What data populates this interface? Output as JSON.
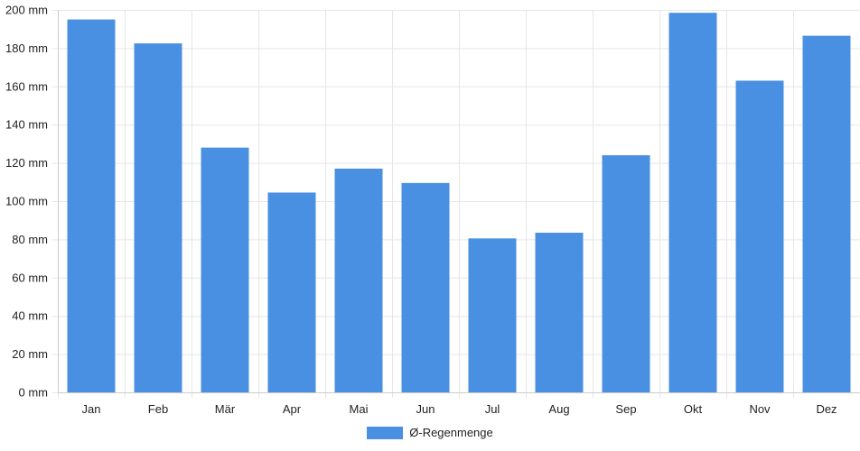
{
  "chart_data": {
    "type": "bar",
    "categories": [
      "Jan",
      "Feb",
      "Mär",
      "Apr",
      "Mai",
      "Jun",
      "Jul",
      "Aug",
      "Sep",
      "Okt",
      "Nov",
      "Dez"
    ],
    "series": [
      {
        "name": "Ø-Regenmenge",
        "values": [
          195,
          182.5,
          128,
          104.5,
          117,
          109.5,
          80.5,
          83.5,
          124,
          198.5,
          163,
          186.5
        ]
      }
    ],
    "y_ticks": [
      0,
      20,
      40,
      60,
      80,
      100,
      120,
      140,
      160,
      180,
      200
    ],
    "y_unit": "mm",
    "ylim": [
      0,
      200
    ],
    "grid": true,
    "legend_position": "bottom",
    "colors": {
      "bar": "#4a90e2",
      "grid": "#e6e6e6",
      "axis": "#cccccc"
    }
  },
  "legend": {
    "label": "Ø-Regenmenge"
  }
}
